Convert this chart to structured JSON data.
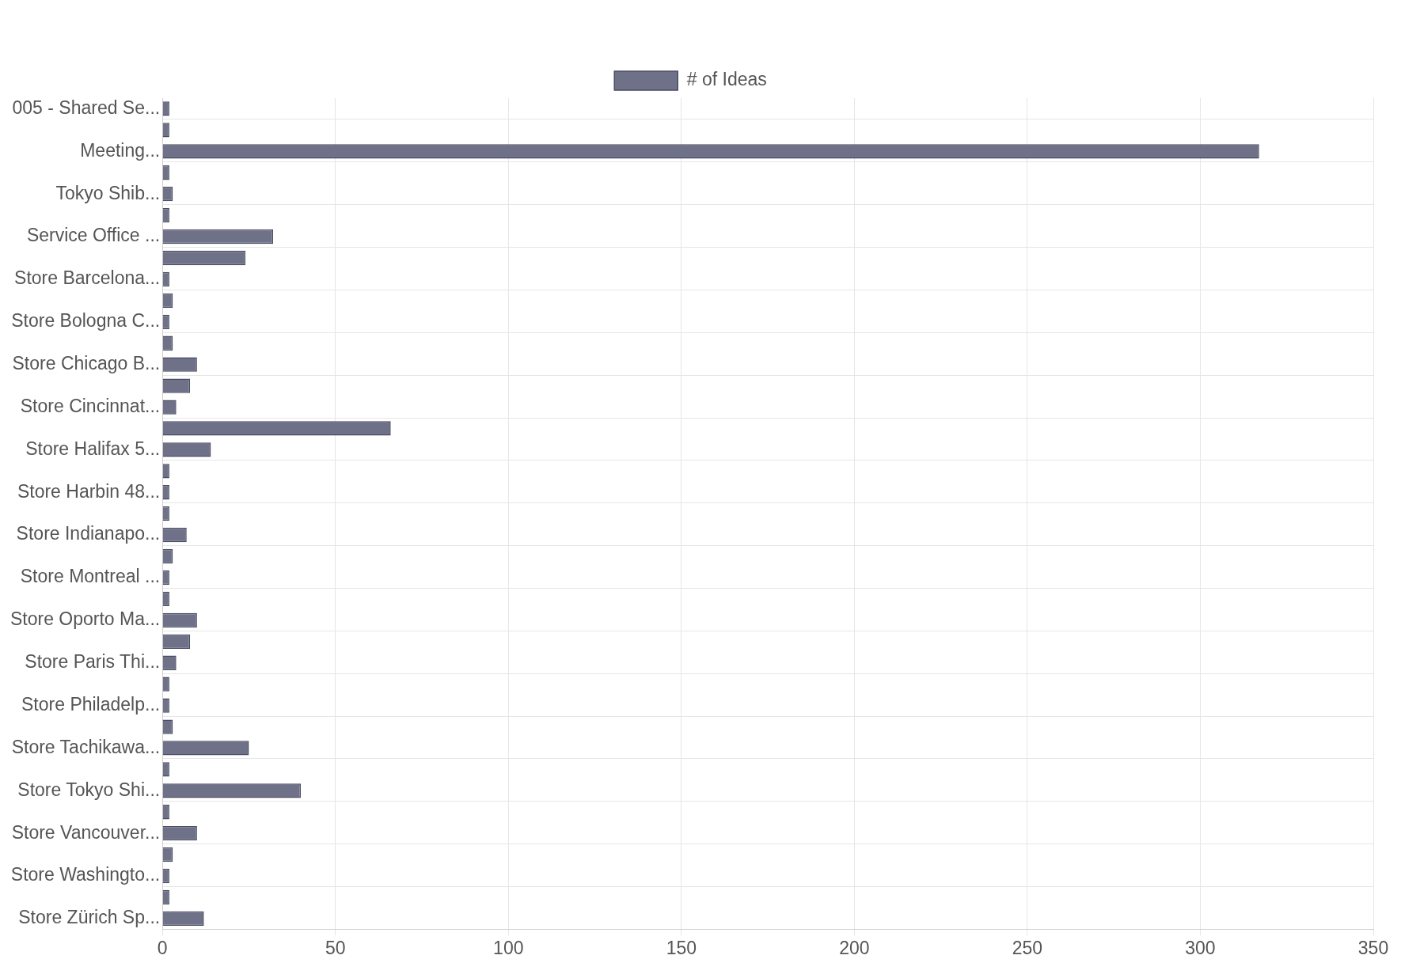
{
  "chart_data": {
    "type": "bar",
    "orientation": "horizontal",
    "legend": "top",
    "grid": true,
    "categories": [
      "005 - Shared Se...",
      null,
      "Meeting...",
      null,
      "Tokyo Shib...",
      null,
      "Service Office ...",
      null,
      "Store Barcelona...",
      null,
      "Store Bologna C...",
      null,
      "Store Chicago B...",
      null,
      "Store Cincinnat...",
      null,
      "Store Halifax 5...",
      null,
      "Store Harbin 48...",
      null,
      "Store Indianapo...",
      null,
      "Store Montreal ...",
      null,
      "Store Oporto Ma...",
      null,
      "Store Paris Thi...",
      null,
      "Store Philadelp...",
      null,
      "Store Tachikawa...",
      null,
      "Store Tokyo Shi...",
      null,
      "Store Vancouver...",
      null,
      "Store Washingto...",
      null,
      "Store Zürich Sp..."
    ],
    "series": [
      {
        "name": "# of Ideas",
        "color": "#6f7189",
        "values": [
          2,
          2,
          317,
          2,
          3,
          2,
          32,
          24,
          2,
          3,
          2,
          3,
          10,
          8,
          4,
          66,
          14,
          2,
          2,
          2,
          7,
          3,
          2,
          2,
          10,
          8,
          4,
          2,
          2,
          3,
          25,
          2,
          40,
          2,
          10,
          3,
          2,
          2,
          12
        ]
      }
    ],
    "xlim": [
      0,
      350
    ],
    "xticks": [
      0,
      50,
      100,
      150,
      200,
      250,
      300,
      350
    ]
  }
}
